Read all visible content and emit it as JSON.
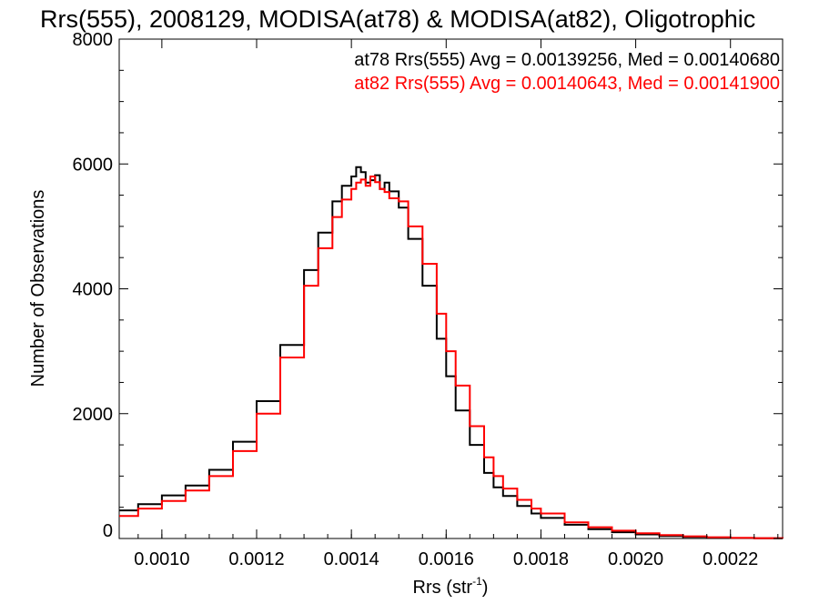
{
  "chart_data": {
    "type": "line",
    "title": "Rrs(555), 2008129, MODISA(at78) & MODISA(at82), Oligotrophic",
    "xlabel": "Rrs (str",
    "xlabel_sup": "-1",
    "xlabel_close": ")",
    "ylabel": "Number of Observations",
    "xlim": [
      0.00091,
      0.00231
    ],
    "ylim": [
      0,
      8000
    ],
    "x_ticks": [
      "0.0010",
      "0.0012",
      "0.0014",
      "0.0016",
      "0.0018",
      "0.0020",
      "0.0022"
    ],
    "x_tick_values": [
      0.001,
      0.0012,
      0.0014,
      0.0016,
      0.0018,
      0.002,
      0.0022
    ],
    "y_ticks": [
      "0",
      "2000",
      "4000",
      "6000",
      "8000"
    ],
    "y_tick_values": [
      0,
      2000,
      4000,
      6000,
      8000
    ],
    "grid": false,
    "legend_position": "top-right",
    "annotations": [
      {
        "text": "at78 Rrs(555) Avg = 0.00139256, Med = 0.00140680",
        "color": "#000000"
      },
      {
        "text": "at82 Rrs(555) Avg = 0.00140643, Med = 0.00141900",
        "color": "#ff0000"
      }
    ],
    "x": [
      0.00091,
      0.00095,
      0.001,
      0.00105,
      0.0011,
      0.00115,
      0.0012,
      0.00125,
      0.0013,
      0.00133,
      0.00136,
      0.00138,
      0.0014,
      0.00141,
      0.00142,
      0.00143,
      0.00144,
      0.00145,
      0.00146,
      0.00147,
      0.00148,
      0.0015,
      0.00152,
      0.00155,
      0.00158,
      0.0016,
      0.00162,
      0.00165,
      0.00168,
      0.0017,
      0.00172,
      0.00175,
      0.00178,
      0.0018,
      0.00185,
      0.0019,
      0.00195,
      0.002,
      0.00205,
      0.0021,
      0.00215,
      0.0022,
      0.00225,
      0.00231
    ],
    "series": [
      {
        "color": "#000000",
        "values": [
          450,
          550,
          690,
          850,
          1100,
          1550,
          2200,
          3100,
          4300,
          4900,
          5400,
          5650,
          5800,
          5950,
          5870,
          5700,
          5740,
          5820,
          5600,
          5700,
          5560,
          5300,
          4800,
          4050,
          3200,
          2600,
          2050,
          1500,
          1050,
          820,
          680,
          520,
          400,
          330,
          220,
          150,
          100,
          65,
          40,
          25,
          15,
          8,
          5,
          2
        ]
      },
      {
        "color": "#ff0000",
        "values": [
          360,
          480,
          600,
          770,
          1000,
          1400,
          2000,
          2900,
          4050,
          4650,
          5150,
          5430,
          5600,
          5700,
          5750,
          5650,
          5800,
          5710,
          5600,
          5550,
          5450,
          5400,
          5000,
          4400,
          3600,
          3000,
          2450,
          1800,
          1300,
          1000,
          800,
          620,
          480,
          400,
          260,
          180,
          125,
          85,
          55,
          35,
          20,
          12,
          6,
          3
        ]
      }
    ]
  }
}
